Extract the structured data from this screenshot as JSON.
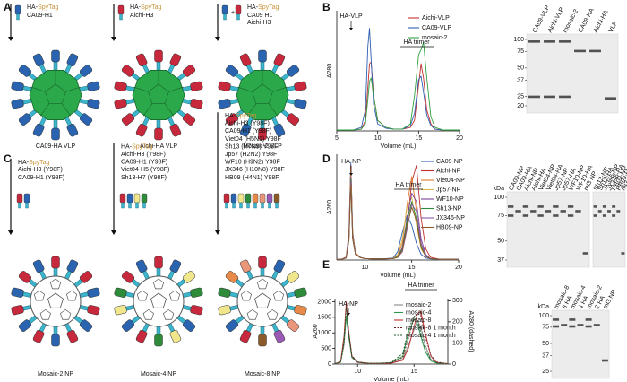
{
  "panels": {
    "a": "A",
    "b": "B",
    "c": "C",
    "d": "D",
    "e": "E"
  },
  "diagram_a": {
    "items": [
      {
        "tag_prefix": "HA-",
        "tag": "SpyTag",
        "strains": [
          "CA09-H1"
        ],
        "label": "CA09-HA VLP"
      },
      {
        "tag_prefix": "HA-",
        "tag": "SpyTag",
        "strains": [
          "Aichi-H3"
        ],
        "label": "Aichi-HA VLP"
      },
      {
        "plus": "+",
        "tag_prefix": "HA-",
        "tag": "SpyTag",
        "strains": [
          "CA09 H1",
          "Aichi-H3"
        ],
        "label": "Mosaic-2 VLP"
      }
    ]
  },
  "diagram_c": {
    "items": [
      {
        "tag_prefix": "HA-",
        "tag": "SpyTag",
        "strains": [
          "Aichi-H3 (Y98F)",
          "CA09-H1 (Y98F)"
        ],
        "label": "Mosaic-2 NP"
      },
      {
        "tag_prefix": "HA-",
        "tag": "SpyTag",
        "strains": [
          "Aichi-H3 (Y98F)",
          "CA09-H1 (Y98F)",
          "Viet04-H5 (Y98F)",
          "Sh13-H7 (Y98F)"
        ],
        "label": "Mosaic-4 NP"
      },
      {
        "tag_prefix": "HA-",
        "tag": "SpyTag",
        "strains": [
          "Aichi-H3 (Y98F)",
          "CA09-H1 (Y98F)",
          "Viet04 (H5N1) Y98F",
          "Sh13 (H7N9) Y98F",
          "Jp57 (H2N2) Y98F",
          "WF10 (H9N2) Y98F",
          "JX346 (H10N8) Y98F",
          "HB09 (H4N1) Y98F"
        ],
        "label": "Mosaic-8 NP"
      }
    ]
  },
  "chart_data": [
    {
      "type": "line",
      "xlabel": "Volume (mL)",
      "ylabel": "A280",
      "xlim": [
        5,
        20
      ],
      "xticks": [
        5,
        10,
        15,
        20
      ],
      "ylim": [
        0,
        680
      ],
      "annotations": [
        "HA-VLP",
        "HA trimer"
      ],
      "x": [
        5,
        7,
        8,
        8.5,
        8.8,
        9,
        9.2,
        9.5,
        10,
        11,
        12,
        13,
        14,
        14.5,
        15,
        15.3,
        15.6,
        16,
        16.5,
        17,
        18,
        20
      ],
      "series": [
        {
          "name": "Aichi-VLP",
          "color": "#c0302f",
          "values": [
            5,
            5,
            10,
            60,
            250,
            380,
            390,
            200,
            60,
            20,
            10,
            10,
            20,
            60,
            260,
            380,
            300,
            120,
            40,
            10,
            5,
            5
          ]
        },
        {
          "name": "CA09-VLP",
          "color": "#2f5fb3",
          "values": [
            5,
            5,
            20,
            120,
            480,
            580,
            400,
            150,
            40,
            15,
            10,
            10,
            30,
            100,
            290,
            310,
            220,
            90,
            30,
            10,
            5,
            5
          ]
        },
        {
          "name": "mosaic-2",
          "color": "#2fa040",
          "values": [
            5,
            5,
            10,
            40,
            180,
            280,
            300,
            200,
            60,
            20,
            10,
            10,
            40,
            200,
            430,
            460,
            500,
            300,
            80,
            20,
            5,
            5
          ]
        }
      ]
    },
    {
      "type": "line",
      "xlabel": "Volume (mL)",
      "ylabel": "A260",
      "xlim": [
        7,
        20
      ],
      "xticks": [
        10,
        15,
        20
      ],
      "ylim": [
        0,
        760
      ],
      "annotations": [
        "HA-NP",
        "HA trimer"
      ],
      "x": [
        7,
        7.5,
        8,
        8.3,
        8.5,
        8.7,
        9,
        9.5,
        10,
        11,
        12,
        13,
        13.5,
        14,
        14.5,
        15,
        15.5,
        16,
        16.5,
        17,
        18,
        20
      ],
      "series": [
        {
          "name": "CA09-NP",
          "color": "#2f5fb3",
          "values": [
            5,
            5,
            20,
            200,
            700,
            200,
            50,
            20,
            10,
            8,
            8,
            15,
            60,
            200,
            320,
            250,
            120,
            40,
            15,
            8,
            5,
            5
          ]
        },
        {
          "name": "Aichi-NP",
          "color": "#c0302f",
          "values": [
            5,
            5,
            20,
            180,
            680,
            190,
            50,
            20,
            10,
            8,
            8,
            10,
            20,
            60,
            250,
            560,
            680,
            300,
            80,
            20,
            5,
            5
          ]
        },
        {
          "name": "Viet04-NP",
          "color": "#e07b2b",
          "values": [
            5,
            5,
            15,
            170,
            650,
            180,
            45,
            18,
            10,
            8,
            8,
            12,
            30,
            120,
            400,
            600,
            350,
            100,
            30,
            10,
            5,
            5
          ]
        },
        {
          "name": "Jp57-NP",
          "color": "#d9b84a",
          "values": [
            5,
            5,
            15,
            160,
            620,
            170,
            45,
            18,
            10,
            8,
            8,
            12,
            40,
            150,
            380,
            450,
            250,
            80,
            25,
            10,
            5,
            5
          ]
        },
        {
          "name": "WF10-NP",
          "color": "#7a3f98",
          "values": [
            5,
            5,
            15,
            160,
            600,
            160,
            40,
            18,
            10,
            8,
            8,
            10,
            25,
            90,
            300,
            480,
            420,
            150,
            40,
            10,
            5,
            5
          ]
        },
        {
          "name": "Sh13-NP",
          "color": "#2e8b3a",
          "values": [
            5,
            5,
            15,
            150,
            580,
            160,
            40,
            18,
            10,
            8,
            8,
            10,
            25,
            80,
            280,
            420,
            300,
            100,
            30,
            10,
            5,
            5
          ]
        },
        {
          "name": "JX346-NP",
          "color": "#8a5aa8",
          "values": [
            5,
            5,
            15,
            150,
            560,
            150,
            40,
            18,
            10,
            8,
            8,
            10,
            20,
            60,
            220,
            400,
            350,
            120,
            30,
            10,
            5,
            5
          ]
        },
        {
          "name": "HB09-NP",
          "color": "#8b5a2b",
          "values": [
            5,
            5,
            15,
            140,
            540,
            150,
            40,
            18,
            10,
            8,
            8,
            10,
            20,
            70,
            250,
            380,
            280,
            90,
            25,
            10,
            5,
            5
          ]
        }
      ]
    },
    {
      "type": "line",
      "xlabel": "Volume (mL)",
      "ylabel": "A260",
      "y2label": "A280 (dashed)",
      "xlim": [
        8,
        18
      ],
      "xticks": [
        10,
        15
      ],
      "ylim": [
        0,
        2100
      ],
      "yticks": [
        0,
        500,
        1000,
        1500,
        2000
      ],
      "y2lim": [
        0,
        310
      ],
      "y2ticks": [
        0,
        100,
        200,
        300
      ],
      "annotations": [
        "HA-NP",
        "HA trimer"
      ],
      "x": [
        8,
        8.5,
        8.8,
        9,
        9.2,
        9.5,
        10,
        11,
        12,
        13,
        14,
        14.5,
        15,
        15.3,
        15.6,
        16,
        16.5,
        17,
        18
      ],
      "series": [
        {
          "name": "mosaic-2",
          "color": "#888888",
          "values": [
            10,
            50,
            600,
            1500,
            900,
            200,
            50,
            20,
            20,
            30,
            150,
            600,
            1100,
            1400,
            1200,
            600,
            150,
            40,
            10
          ]
        },
        {
          "name": "mosaic-4",
          "color": "#2a9a4a",
          "values": [
            10,
            60,
            700,
            1550,
            950,
            220,
            60,
            20,
            20,
            40,
            250,
            1000,
            1450,
            1300,
            900,
            400,
            100,
            30,
            10
          ]
        },
        {
          "name": "mosaic-8",
          "color": "#c0302f",
          "values": [
            10,
            80,
            900,
            2000,
            1100,
            250,
            60,
            20,
            20,
            30,
            120,
            500,
            1200,
            1600,
            1700,
            1000,
            250,
            50,
            10
          ]
        },
        {
          "name": "mosaic-8 1 month",
          "color": "#6a1f1f",
          "axis": "y2",
          "dash": true,
          "values": [
            2,
            10,
            100,
            280,
            160,
            40,
            10,
            4,
            4,
            6,
            30,
            120,
            220,
            240,
            230,
            130,
            40,
            10,
            2
          ]
        },
        {
          "name": "mosaic-4 1 month",
          "color": "#1f5a2f",
          "axis": "y2",
          "dash": true,
          "values": [
            2,
            10,
            110,
            270,
            150,
            35,
            10,
            4,
            4,
            8,
            50,
            160,
            230,
            210,
            150,
            70,
            20,
            6,
            2
          ]
        }
      ]
    }
  ],
  "gels": [
    {
      "lanes": [
        "CA09-VLP",
        "Aichi-VLP",
        "mosaic-2",
        "CA09-HA",
        "Aichi-HA",
        "VLP"
      ],
      "markers": [
        100,
        75,
        50,
        37,
        25,
        20
      ]
    },
    {
      "kda": "kDa",
      "lanes": [
        "CA09-NP",
        "CA09-HA",
        "Aichi-NP",
        "Aichi-HA",
        "Viet04-NP",
        "Viet04-HA",
        "Jp57-NP",
        "Jp57-HA",
        "WF10-NP",
        "WF10-HA",
        "mi3 NP"
      ],
      "markers": [
        100,
        75,
        50,
        37
      ]
    },
    {
      "lanes": [
        "Sh13-NP",
        "Sh13-HA",
        "JX346-NP",
        "JX346-HA",
        "HB09-NP",
        "HB09-HA",
        "mi3 NP"
      ]
    },
    {
      "kda": "kDa",
      "lanes": [
        "mosaic-8",
        "8 HA",
        "mosaic-4",
        "4 HA",
        "mosaic-2",
        "2 HA",
        "mi3 NP"
      ],
      "markers": [
        100,
        75,
        50,
        37,
        25
      ]
    }
  ]
}
